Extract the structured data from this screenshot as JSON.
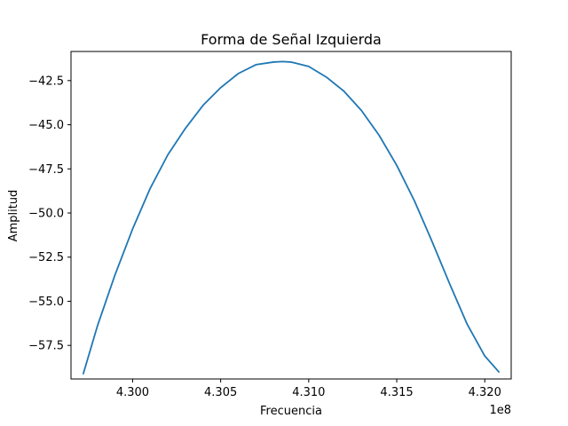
{
  "chart_data": {
    "type": "line",
    "title": "Forma de Señal Izquierda",
    "xlabel": "Frecuencia",
    "ylabel": "Amplitud",
    "x_offset_label": "1e8",
    "xlim": [
      429.65,
      432.15
    ],
    "ylim": [
      -59.4,
      -40.85
    ],
    "x_ticks": [
      430.0,
      430.5,
      431.0,
      431.5,
      432.0
    ],
    "x_tick_labels": [
      "4.300",
      "4.305",
      "4.310",
      "4.315",
      "4.320"
    ],
    "y_ticks": [
      -42.5,
      -45.0,
      -47.5,
      -50.0,
      -52.5,
      -55.0,
      -57.5
    ],
    "y_tick_labels": [
      "−42.5",
      "−45.0",
      "−47.5",
      "−50.0",
      "−52.5",
      "−55.0",
      "−57.5"
    ],
    "grid": false,
    "series": [
      {
        "color": "#1f77b4",
        "x": [
          429.72,
          429.8,
          429.9,
          430.0,
          430.1,
          430.2,
          430.3,
          430.4,
          430.5,
          430.6,
          430.7,
          430.8,
          430.85,
          430.9,
          430.92,
          431.0,
          431.1,
          431.2,
          431.3,
          431.4,
          431.5,
          431.6,
          431.7,
          431.8,
          431.9,
          432.0,
          432.08
        ],
        "y": [
          -59.1,
          -56.4,
          -53.5,
          -50.9,
          -48.6,
          -46.7,
          -45.2,
          -43.9,
          -42.9,
          -42.1,
          -41.6,
          -41.45,
          -41.42,
          -41.45,
          -41.5,
          -41.7,
          -42.3,
          -43.1,
          -44.2,
          -45.6,
          -47.3,
          -49.3,
          -51.6,
          -54.0,
          -56.3,
          -58.1,
          -59.0
        ]
      }
    ]
  }
}
